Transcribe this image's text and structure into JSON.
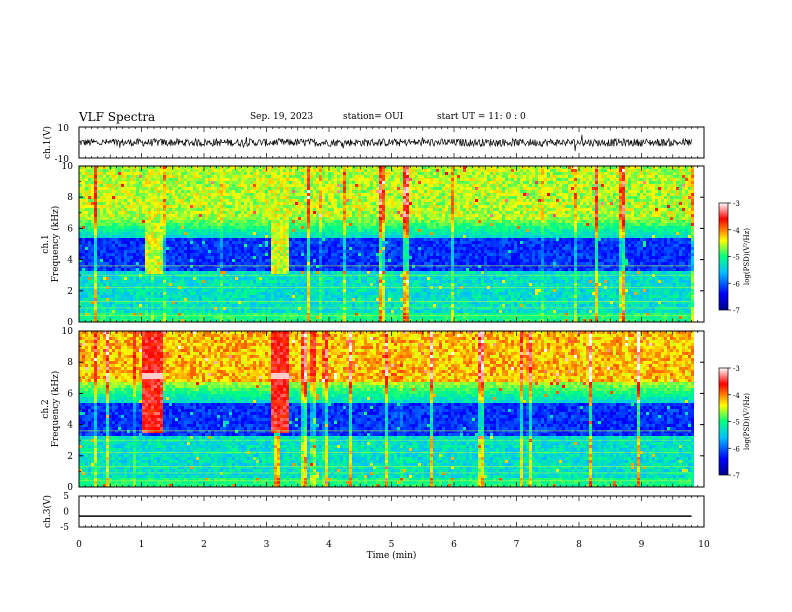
{
  "header": {
    "title": "VLF Spectra",
    "date": "Sep. 19, 2023",
    "station": "station= OUI",
    "start_ut": "start  UT =   11: 0  : 0"
  },
  "chart_data": [
    {
      "type": "line",
      "panel": "ch1-waveform",
      "ylabel": "ch.1(V)",
      "ylim": [
        -10,
        10
      ],
      "y_ticks": [
        "10",
        "-10"
      ],
      "xlim": [
        0,
        10
      ],
      "description_values": {
        "mean": 0.0,
        "amplitude_peak": 2.5
      }
    },
    {
      "type": "heatmap",
      "panel": "ch1-spectrogram",
      "ylabel": "ch.1\nFrequency (kHz)",
      "ylabel_lines": [
        "ch.1",
        "Frequency (kHz)"
      ],
      "y_ticks": [
        "0",
        "2",
        "4",
        "6",
        "8",
        "10"
      ],
      "ylim": [
        0,
        10
      ],
      "xlim": [
        0,
        10
      ],
      "data_end_min": 9.8,
      "bursts_min": [
        [
          1.05,
          1.3
        ],
        [
          3.05,
          3.35
        ]
      ],
      "colorbar": {
        "label": "log(PSD)(V²/Hz)",
        "ticks": [
          "-3",
          "-4",
          "-5",
          "-6",
          "-7"
        ],
        "range": [
          -7,
          -3
        ],
        "colors": [
          "#00008b",
          "#0000ff",
          "#00bfff",
          "#00ff80",
          "#ffff00",
          "#ff0000",
          "#ffffff"
        ]
      }
    },
    {
      "type": "heatmap",
      "panel": "ch2-spectrogram",
      "ylabel_lines": [
        "ch.2",
        "Frequency (kHz)"
      ],
      "y_ticks": [
        "0",
        "2",
        "4",
        "6",
        "8",
        "10"
      ],
      "ylim": [
        0,
        10
      ],
      "xlim": [
        0,
        10
      ],
      "data_end_min": 9.8,
      "bursts_min": [
        [
          1.0,
          1.3
        ],
        [
          3.05,
          3.35
        ]
      ],
      "colorbar": {
        "label": "log(PSD)(V²/Hz)",
        "ticks": [
          "-3",
          "-4",
          "-5",
          "-6",
          "-7"
        ],
        "range": [
          -7,
          -3
        ],
        "colors": [
          "#00008b",
          "#0000ff",
          "#00bfff",
          "#00ff80",
          "#ffff00",
          "#ff0000",
          "#ffffff"
        ]
      }
    },
    {
      "type": "line",
      "panel": "ch3-waveform",
      "ylabel": "ch.3(V)",
      "ylim": [
        -5,
        5
      ],
      "y_ticks": [
        "5",
        "0",
        "-5"
      ],
      "xlim": [
        0,
        10
      ],
      "constant_value": -1.5
    }
  ],
  "x_axis": {
    "label": "Time (min)",
    "ticks": [
      "0",
      "1",
      "2",
      "3",
      "4",
      "5",
      "6",
      "7",
      "8",
      "9",
      "10"
    ]
  }
}
